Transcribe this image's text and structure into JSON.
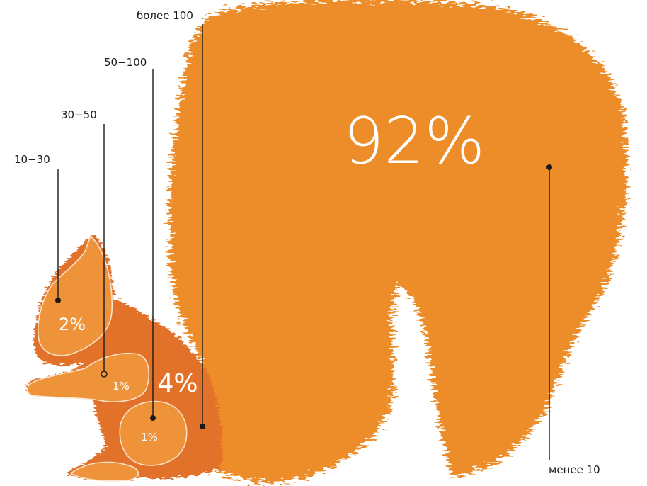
{
  "colors": {
    "tail": "#ec8d2b",
    "body": "#e2712b",
    "part": "#ee933a",
    "outline": "#fbe2c6",
    "ink": "#1a1a1a"
  },
  "chart_data": {
    "type": "diagram",
    "segments": [
      {
        "id": "tail",
        "range_label": "менее 10",
        "value": 92,
        "value_label": "92%"
      },
      {
        "id": "head",
        "range_label": "10−30",
        "value": 2,
        "value_label": "2%"
      },
      {
        "id": "paw",
        "range_label": "30−50",
        "value": 1,
        "value_label": "1%"
      },
      {
        "id": "thigh",
        "range_label": "50−100",
        "value": 1,
        "value_label": "1%"
      },
      {
        "id": "torso",
        "range_label": "более 100",
        "value": 4,
        "value_label": "4%"
      }
    ]
  }
}
